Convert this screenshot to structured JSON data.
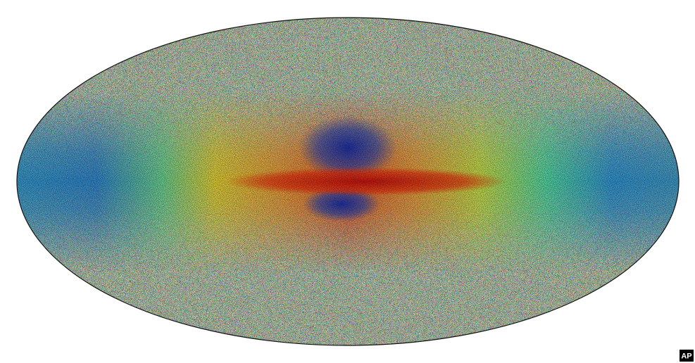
{
  "credit": "AP"
}
